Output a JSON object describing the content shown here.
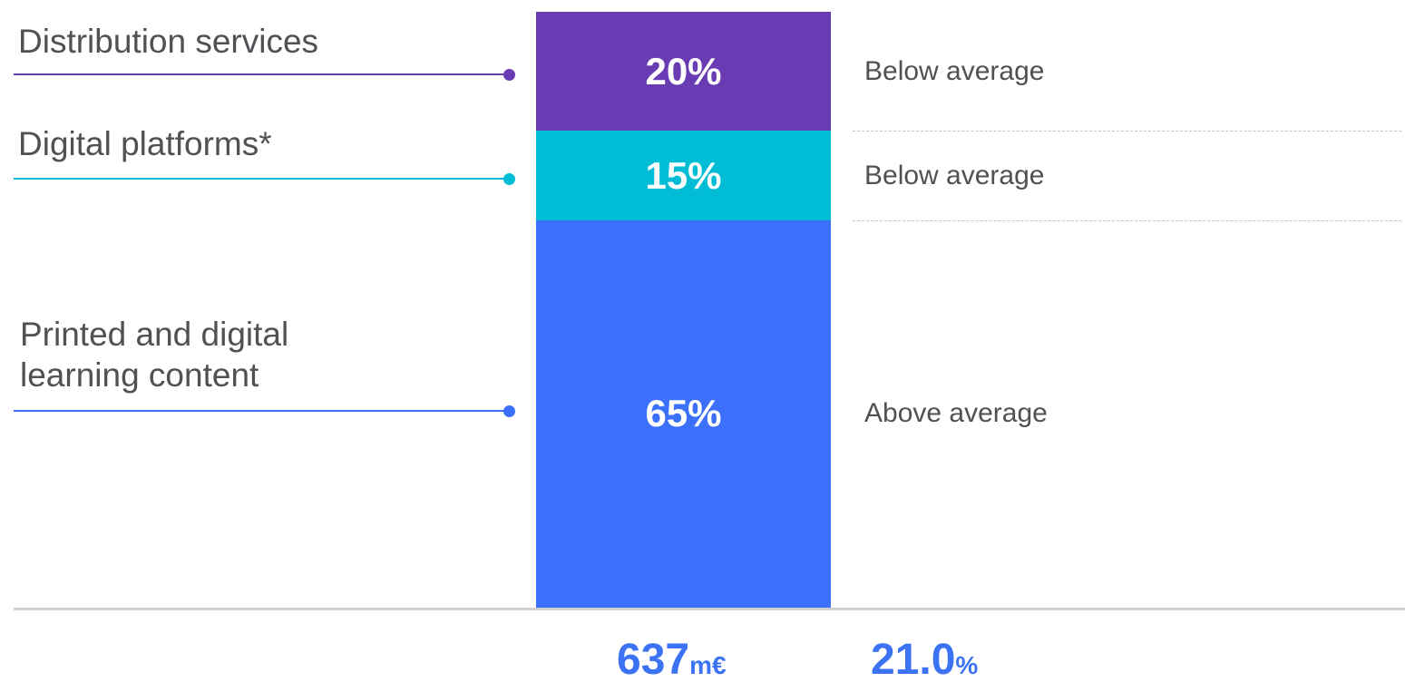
{
  "chart_data": {
    "type": "bar",
    "stacked": true,
    "categories": [
      "Printed and digital\nlearning content",
      "Digital platforms*",
      "Distribution services"
    ],
    "values": [
      65,
      15,
      20
    ],
    "value_labels": [
      "65%",
      "15%",
      "20%"
    ],
    "assessments": [
      "Above average",
      "Below average",
      "Below average"
    ],
    "colors": [
      "#3c6ffa",
      "#00bcd4",
      "#693cb4"
    ],
    "ylim": [
      0,
      100
    ],
    "title": "",
    "xlabel": "",
    "ylabel": "",
    "grid": false,
    "legend": "none"
  },
  "totals": {
    "revenue_value": "637",
    "revenue_unit": "m€",
    "margin_value": "21.0",
    "margin_unit": "%"
  }
}
